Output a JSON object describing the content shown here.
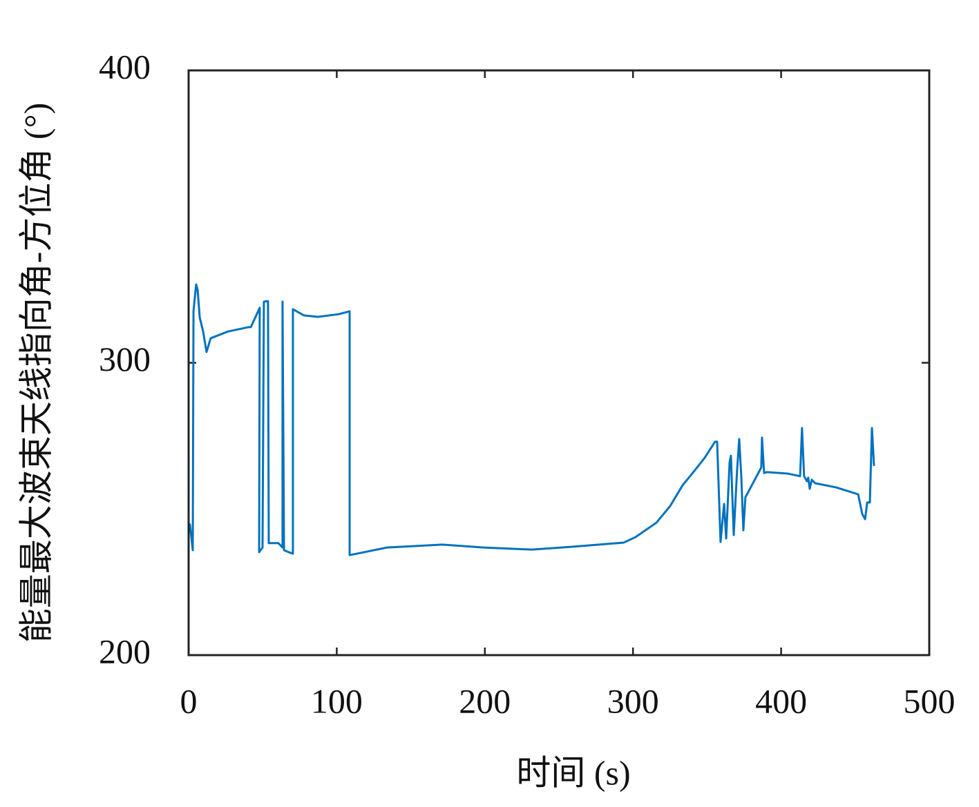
{
  "chart_data": {
    "type": "line",
    "xlabel": "时间 (s)",
    "ylabel": "能量最大波束天线指向角-方位角 (°)",
    "xlim": [
      0,
      500
    ],
    "xticks": [
      0,
      100,
      200,
      300,
      400,
      500
    ],
    "ylim": [
      200,
      400
    ],
    "yticks": [
      200,
      300,
      400
    ],
    "series": [
      {
        "color": "#0072bd",
        "x": [
          0.5,
          0.9,
          2.8,
          3.3,
          5.1,
          6.1,
          7.5,
          9.8,
          12.1,
          14.9,
          26.6,
          40.6,
          42,
          48,
          47.6,
          49.9,
          50.8,
          53.6,
          54.1,
          60.6,
          63.4,
          63.4,
          64.4,
          67.6,
          70.4,
          70.4,
          77.9,
          87.2,
          101.2,
          108.7,
          108.7,
          133.9,
          171.2,
          199.2,
          231.8,
          259.8,
          293.8,
          301.8,
          315.8,
          325.1,
          333.5,
          341.4,
          348.4,
          355.4,
          356.8,
          359.1,
          361.5,
          362.9,
          365.2,
          366.1,
          368,
          370.3,
          371.7,
          373.1,
          374.5,
          375.9,
          377.3,
          386.6,
          387.1,
          388.5,
          390.3,
          404.4,
          412.8,
          414.1,
          415.5,
          417.4,
          418.3,
          419.3,
          420.7,
          423,
          437,
          452,
          454.8,
          456.7,
          458.1,
          459.9,
          461.3,
          462.7
        ],
        "values": [
          245,
          244.6,
          235.9,
          317.8,
          326.8,
          324.9,
          315.5,
          310.7,
          303.7,
          308.4,
          310.7,
          312.2,
          312.2,
          318.8,
          235.2,
          236.8,
          320.9,
          321.1,
          238.3,
          238.3,
          236.8,
          320.9,
          235.9,
          235.2,
          234.7,
          318.3,
          316.2,
          315.7,
          316.6,
          317.6,
          234.2,
          236.8,
          237.8,
          236.8,
          236.1,
          237.1,
          238.5,
          240.4,
          245.3,
          251,
          258.1,
          263,
          267.5,
          273,
          273,
          238.7,
          251.7,
          239.9,
          265.9,
          268.2,
          241.1,
          263.5,
          273.9,
          261.2,
          242.7,
          254.1,
          255.3,
          264.2,
          274.4,
          262.3,
          262.6,
          262.1,
          261.2,
          277.7,
          261.2,
          259.5,
          260.7,
          256.9,
          260,
          258.8,
          257.4,
          255,
          248.2,
          246.5,
          252.2,
          252.2,
          277.7,
          264.7
        ]
      }
    ]
  }
}
